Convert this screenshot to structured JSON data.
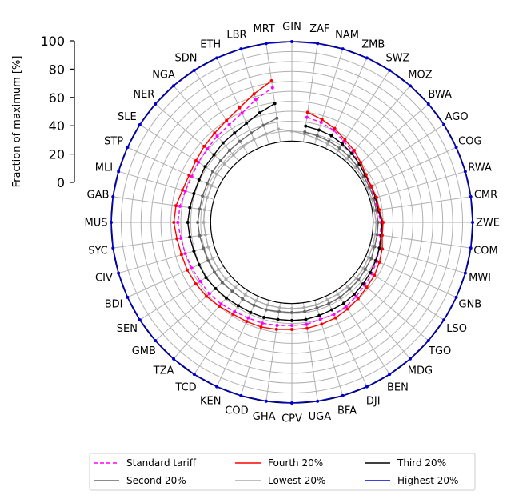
{
  "chart_data": {
    "type": "radar",
    "ylabel": "Fraction of maximum [%]",
    "ylim": [
      0,
      100
    ],
    "yticks": [
      "0",
      "20",
      "40",
      "60",
      "80",
      "100"
    ],
    "inner_hole_fraction": 0.45,
    "categories": [
      "GIN",
      "ZAF",
      "NAM",
      "ZMB",
      "SWZ",
      "MOZ",
      "BWA",
      "AGO",
      "COG",
      "RWA",
      "CMR",
      "ZWE",
      "COM",
      "MWI",
      "GNB",
      "LSO",
      "TGO",
      "MDG",
      "BEN",
      "DJI",
      "BFA",
      "UGA",
      "CPV",
      "GHA",
      "COD",
      "KEN",
      "TCD",
      "TZA",
      "GMB",
      "SEN",
      "BDI",
      "CIV",
      "SYC",
      "MUS",
      "GAB",
      "MLI",
      "STP",
      "SLE",
      "NER",
      "NGA",
      "SDN",
      "ETH",
      "LBR",
      "MRT"
    ],
    "series": [
      {
        "name": "Standard tariff",
        "color": "#ff00ff",
        "dash": true,
        "marker": true,
        "values": [
          null,
          25,
          23,
          20,
          15,
          12,
          8,
          6,
          5,
          5,
          5,
          8,
          8,
          10,
          12,
          14,
          15,
          17,
          19,
          20,
          20,
          22,
          22,
          23,
          24,
          24,
          25,
          27,
          28,
          28,
          29,
          30,
          31,
          33,
          32,
          30,
          29,
          30,
          31,
          33,
          35,
          39,
          47,
          55
        ]
      },
      {
        "name": "Lowest 20%",
        "color": "#aaaaaa",
        "dash": false,
        "marker": true,
        "values": [
          10,
          8,
          6,
          5,
          4,
          3,
          3,
          2,
          2,
          2,
          2,
          3,
          3,
          3,
          3,
          4,
          4,
          4,
          4,
          4,
          5,
          5,
          5,
          5,
          5,
          5,
          5,
          5,
          6,
          6,
          6,
          6,
          6,
          7,
          7,
          7,
          7,
          8,
          8,
          8,
          9,
          10,
          11,
          13
        ]
      },
      {
        "name": "Second 20%",
        "color": "#666666",
        "dash": false,
        "marker": true,
        "values": [
          null,
          10,
          9,
          8,
          7,
          6,
          5,
          4,
          4,
          4,
          4,
          5,
          5,
          5,
          6,
          6,
          7,
          7,
          8,
          8,
          8,
          9,
          9,
          9,
          10,
          10,
          10,
          10,
          11,
          11,
          11,
          11,
          12,
          13,
          12,
          12,
          12,
          13,
          13,
          14,
          15,
          17,
          20,
          24
        ]
      },
      {
        "name": "Third 20%",
        "color": "#000000",
        "dash": false,
        "marker": true,
        "values": [
          null,
          16,
          15,
          14,
          12,
          10,
          8,
          6,
          6,
          6,
          6,
          9,
          9,
          10,
          11,
          12,
          13,
          14,
          15,
          15,
          16,
          17,
          17,
          17,
          18,
          18,
          18,
          19,
          20,
          21,
          21,
          21,
          22,
          23,
          22,
          21,
          21,
          22,
          22,
          24,
          25,
          28,
          33,
          39
        ]
      },
      {
        "name": "Fourth 20%",
        "color": "#ff0000",
        "dash": false,
        "marker": true,
        "values": [
          null,
          30,
          26,
          22,
          17,
          14,
          10,
          7,
          6,
          7,
          7,
          10,
          10,
          13,
          15,
          17,
          18,
          20,
          22,
          24,
          25,
          26,
          26,
          27,
          28,
          28,
          28,
          30,
          32,
          33,
          34,
          34,
          35,
          37,
          36,
          33,
          32,
          33,
          35,
          37,
          40,
          45,
          53,
          62
        ]
      },
      {
        "name": "Highest 20%",
        "color": "#0000cc",
        "dash": false,
        "marker": true,
        "values": [
          100,
          100,
          100,
          100,
          100,
          100,
          100,
          100,
          100,
          100,
          100,
          100,
          100,
          100,
          100,
          100,
          100,
          100,
          100,
          100,
          100,
          100,
          100,
          100,
          100,
          100,
          100,
          100,
          100,
          100,
          100,
          100,
          100,
          100,
          100,
          100,
          100,
          100,
          100,
          100,
          100,
          100,
          100,
          100
        ]
      }
    ],
    "legend": {
      "position": "bottom",
      "columns": 3,
      "order": [
        "Standard tariff",
        "Second 20%",
        "Fourth 20%",
        "Lowest 20%",
        "Third 20%",
        "Highest 20%"
      ]
    }
  }
}
